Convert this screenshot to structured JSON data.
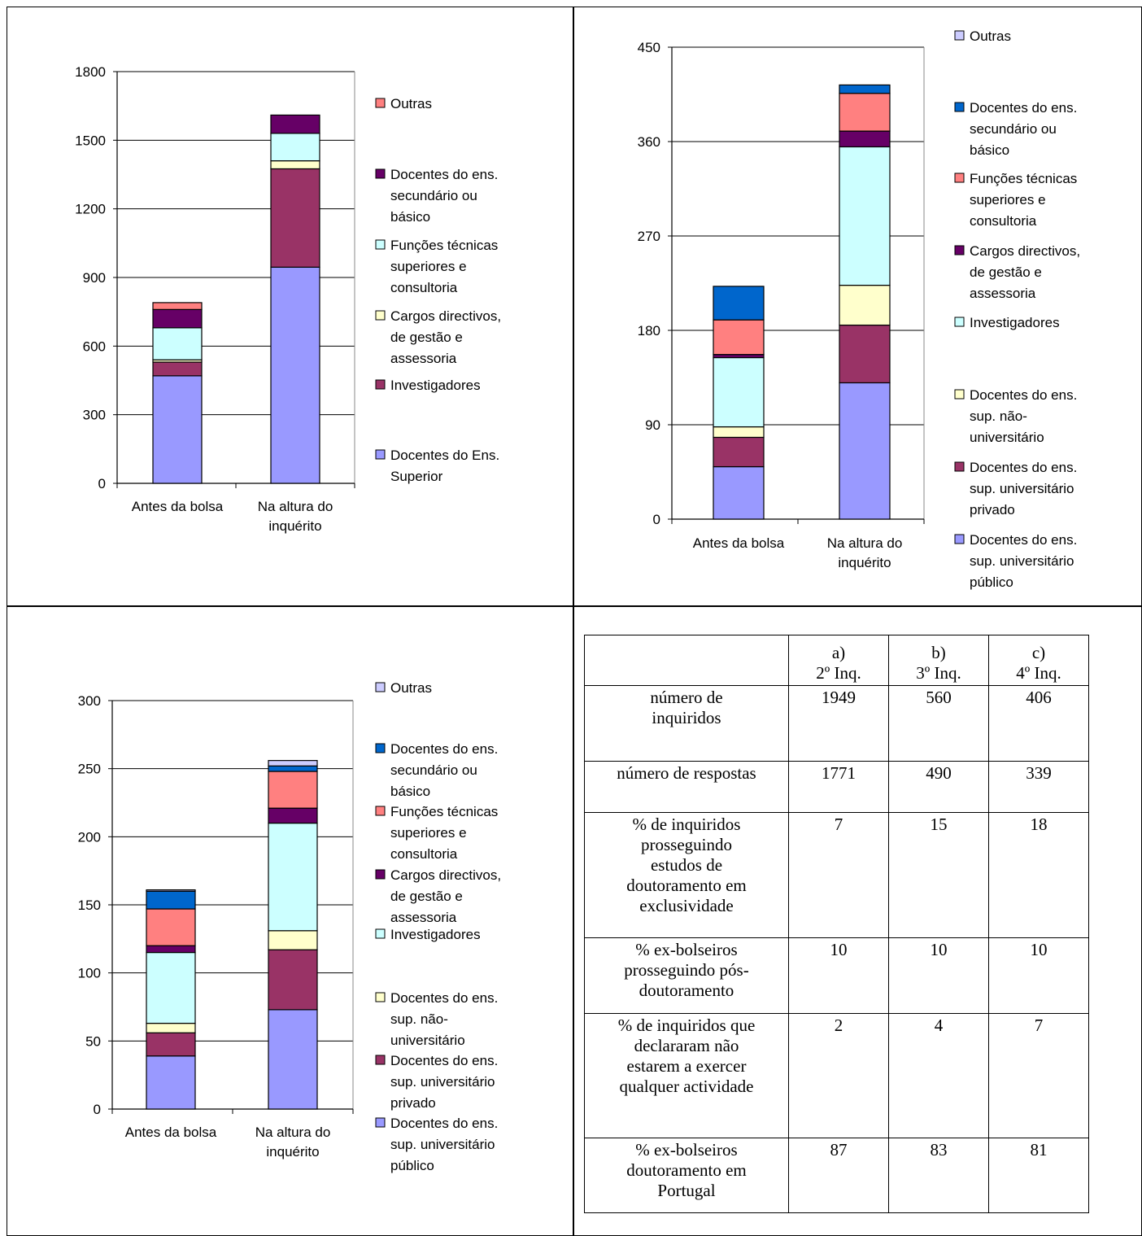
{
  "charts": [
    {
      "chart_data": {
        "type": "bar",
        "stacked": true,
        "categories": [
          "Antes da bolsa",
          "Na altura do inquérito"
        ],
        "ylim": [
          0,
          1800
        ],
        "yticks": [
          0,
          300,
          600,
          900,
          1200,
          1500,
          1800
        ],
        "grid": true,
        "legend_placement": "right",
        "series": [
          {
            "name": "Docentes do Ens. Superior",
            "color": "#9999FF",
            "values": [
              470,
              945
            ]
          },
          {
            "name": "Investigadores",
            "color": "#993366",
            "values": [
              60,
              430
            ]
          },
          {
            "name": "Cargos directivos, de gestão e assessoria",
            "color": "#FFFFCC",
            "values": [
              10,
              35
            ]
          },
          {
            "name": "Funções técnicas superiores e consultoria",
            "color": "#CCFFFF",
            "values": [
              140,
              120
            ]
          },
          {
            "name": "Docentes do ens. secundário ou básico",
            "color": "#660066",
            "values": [
              80,
              80
            ]
          },
          {
            "name": "Outras",
            "color": "#FF8080",
            "values": [
              30,
              0
            ]
          }
        ]
      },
      "legend_lines": [
        [
          "Outras"
        ],
        [
          "Docentes do ens.",
          "secundário ou",
          "básico"
        ],
        [
          "Funções técnicas",
          "superiores e",
          "consultoria"
        ],
        [
          "Cargos directivos,",
          "de gestão e",
          "assessoria"
        ],
        [
          "Investigadores"
        ],
        [
          "Docentes do Ens.",
          "Superior"
        ]
      ],
      "xlabel_lines": [
        [
          "Antes da bolsa"
        ],
        [
          "Na altura do",
          "inquérito"
        ]
      ]
    },
    {
      "chart_data": {
        "type": "bar",
        "stacked": true,
        "categories": [
          "Antes da bolsa",
          "Na altura do inquérito"
        ],
        "ylim": [
          0,
          450
        ],
        "yticks": [
          0,
          90,
          180,
          270,
          360,
          450
        ],
        "grid": true,
        "legend_placement": "right",
        "series": [
          {
            "name": "Docentes do ens. sup. universitário público",
            "color": "#9999FF",
            "values": [
              50,
              130
            ]
          },
          {
            "name": "Docentes do ens. sup. universitário privado",
            "color": "#993366",
            "values": [
              28,
              55
            ]
          },
          {
            "name": "Docentes do ens. sup. não-universitário",
            "color": "#FFFFCC",
            "values": [
              10,
              38
            ]
          },
          {
            "name": "Investigadores",
            "color": "#CCFFFF",
            "values": [
              66,
              132
            ]
          },
          {
            "name": "Cargos directivos, de gestão e assessoria",
            "color": "#660066",
            "values": [
              3,
              15
            ]
          },
          {
            "name": "Funções técnicas superiores e consultoria",
            "color": "#FF8080",
            "values": [
              33,
              36
            ]
          },
          {
            "name": "Docentes do ens. secundário ou básico",
            "color": "#0066CC",
            "values": [
              32,
              8
            ]
          },
          {
            "name": "Outras",
            "color": "#CCCCFF",
            "values": [
              0,
              0
            ]
          }
        ]
      },
      "legend_lines": [
        [
          "Outras"
        ],
        [
          "Docentes do ens.",
          "secundário ou",
          "básico"
        ],
        [
          "Funções técnicas",
          "superiores e",
          "consultoria"
        ],
        [
          "Cargos directivos,",
          "de gestão e",
          "assessoria"
        ],
        [
          "Investigadores"
        ],
        [
          "Docentes do ens.",
          "sup. não-",
          "universitário"
        ],
        [
          "Docentes do ens.",
          "sup. universitário",
          "privado"
        ],
        [
          "Docentes do ens.",
          "sup. universitário",
          "público"
        ]
      ],
      "xlabel_lines": [
        [
          "Antes da bolsa"
        ],
        [
          "Na altura do",
          "inquérito"
        ]
      ]
    },
    {
      "chart_data": {
        "type": "bar",
        "stacked": true,
        "categories": [
          "Antes da bolsa",
          "Na altura do inquérito"
        ],
        "ylim": [
          0,
          300
        ],
        "yticks": [
          0,
          50,
          100,
          150,
          200,
          250,
          300
        ],
        "grid": true,
        "legend_placement": "right",
        "series": [
          {
            "name": "Docentes do ens. sup. universitário público",
            "color": "#9999FF",
            "values": [
              39,
              73
            ]
          },
          {
            "name": "Docentes do ens. sup. universitário privado",
            "color": "#993366",
            "values": [
              17,
              44
            ]
          },
          {
            "name": "Docentes do ens. sup. não-universitário",
            "color": "#FFFFCC",
            "values": [
              7,
              14
            ]
          },
          {
            "name": "Investigadores",
            "color": "#CCFFFF",
            "values": [
              52,
              79
            ]
          },
          {
            "name": "Cargos directivos, de gestão e assessoria",
            "color": "#660066",
            "values": [
              5,
              11
            ]
          },
          {
            "name": "Funções técnicas superiores e consultoria",
            "color": "#FF8080",
            "values": [
              27,
              27
            ]
          },
          {
            "name": "Docentes do ens. secundário ou básico",
            "color": "#0066CC",
            "values": [
              13,
              4
            ]
          },
          {
            "name": "Outras",
            "color": "#CCCCFF",
            "values": [
              1,
              4
            ]
          }
        ]
      },
      "legend_lines": [
        [
          "Outras"
        ],
        [
          "Docentes do ens.",
          "secundário ou",
          "básico"
        ],
        [
          "Funções técnicas",
          "superiores e",
          "consultoria"
        ],
        [
          "Cargos directivos,",
          "de gestão e",
          "assessoria"
        ],
        [
          "Investigadores"
        ],
        [
          "Docentes do ens.",
          "sup. não-",
          "universitário"
        ],
        [
          "Docentes do ens.",
          "sup. universitário",
          "privado"
        ],
        [
          "Docentes do ens.",
          "sup. universitário",
          "público"
        ]
      ],
      "xlabel_lines": [
        [
          "Antes da bolsa"
        ],
        [
          "Na altura do",
          "inquérito"
        ]
      ]
    }
  ],
  "table": {
    "headers": [
      [
        "a)",
        "2º Inq."
      ],
      [
        "b)",
        "3º Inq."
      ],
      [
        "c)",
        "4º Inq."
      ]
    ],
    "rows": [
      {
        "label_lines": [
          "número de",
          "inquiridos"
        ],
        "values": [
          "1949",
          "560",
          "406"
        ]
      },
      {
        "label_lines": [
          "número de respostas"
        ],
        "values": [
          "1771",
          "490",
          "339"
        ]
      },
      {
        "label_lines": [
          "% de inquiridos",
          "prosseguindo",
          "estudos de",
          "doutoramento em",
          "exclusividade"
        ],
        "values": [
          "7",
          "15",
          "18"
        ]
      },
      {
        "label_lines": [
          "% ex-bolseiros",
          "prosseguindo pós-",
          "doutoramento"
        ],
        "values": [
          "10",
          "10",
          "10"
        ]
      },
      {
        "label_lines": [
          "% de inquiridos que",
          "declararam não",
          "estarem a exercer",
          "qualquer actividade"
        ],
        "values": [
          "2",
          "4",
          "7"
        ]
      },
      {
        "label_lines": [
          "% ex-bolseiros",
          "doutoramento  em",
          "Portugal"
        ],
        "values": [
          "87",
          "83",
          "81"
        ]
      }
    ]
  }
}
